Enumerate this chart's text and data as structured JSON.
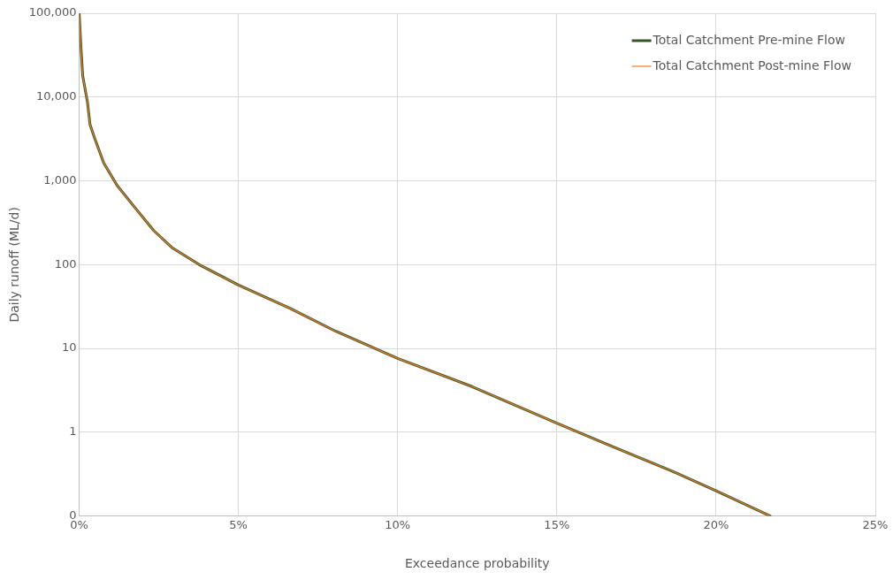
{
  "chart_data": {
    "type": "line",
    "xlabel": "Exceedance probability",
    "ylabel": "Daily runoff (ML/d)",
    "log": "y",
    "grid": true,
    "legend": "top right",
    "marker": "none",
    "line_style": "solid",
    "xlim": [
      0,
      25
    ],
    "xticks": [
      {
        "value": 0,
        "label": "0%"
      },
      {
        "value": 5,
        "label": "5%"
      },
      {
        "value": 10,
        "label": "10%"
      },
      {
        "value": 15,
        "label": "15%"
      },
      {
        "value": 20,
        "label": "20%"
      },
      {
        "value": 25,
        "label": "25%"
      }
    ],
    "ylim": [
      0.1,
      100000
    ],
    "yticks": [
      {
        "value": 0.1,
        "label": "0"
      },
      1,
      10,
      100,
      {
        "value": 1000,
        "label": "1,000"
      },
      {
        "value": 10000,
        "label": "10,000"
      },
      {
        "value": 100000,
        "label": "100,000"
      }
    ],
    "x": [
      0,
      0.06,
      0.11,
      0.26,
      0.34,
      0.49,
      0.77,
      1.2,
      1.77,
      2.34,
      2.91,
      3.77,
      5,
      6.63,
      8.06,
      10,
      12.34,
      15,
      16.6,
      18.57,
      20,
      21.7
    ],
    "series": [
      {
        "name": "Total Catchment Pre-mine Flow",
        "color": "#375623",
        "values": [
          100000,
          37000,
          18000,
          8700,
          4700,
          3200,
          1640,
          870,
          470,
          255,
          160,
          100,
          57,
          30,
          16,
          7.6,
          3.5,
          1.28,
          0.71,
          0.35,
          0.2,
          0.1
        ]
      },
      {
        "name": "Total Catchment Post-mine Flow",
        "color": "#ed7d31",
        "values": [
          100000,
          37000,
          18000,
          8700,
          4700,
          3200,
          1640,
          870,
          470,
          255,
          160,
          100,
          57,
          30,
          16,
          7.6,
          3.5,
          1.28,
          0.71,
          0.35,
          0.2,
          0.1
        ]
      }
    ]
  }
}
